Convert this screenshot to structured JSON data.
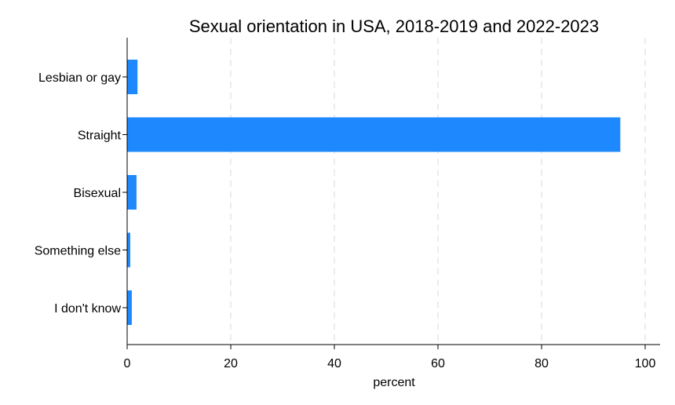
{
  "chart_data": {
    "type": "bar",
    "orientation": "horizontal",
    "title": "Sexual orientation in USA, 2018-2019 and 2022-2023",
    "categories": [
      "Lesbian or gay",
      "Straight",
      "Bisexual",
      "Something else",
      "I don't know"
    ],
    "values": [
      2.0,
      95.2,
      1.8,
      0.6,
      0.9
    ],
    "xlabel": "percent",
    "ylabel": "",
    "xlim": [
      0,
      100
    ],
    "xticks": [
      "0",
      "20",
      "40",
      "60",
      "80",
      "100"
    ],
    "grid": "vertical dashed",
    "legend": "none",
    "bar_color": "#1e88ff",
    "grid_color": "#e6e6e6"
  }
}
